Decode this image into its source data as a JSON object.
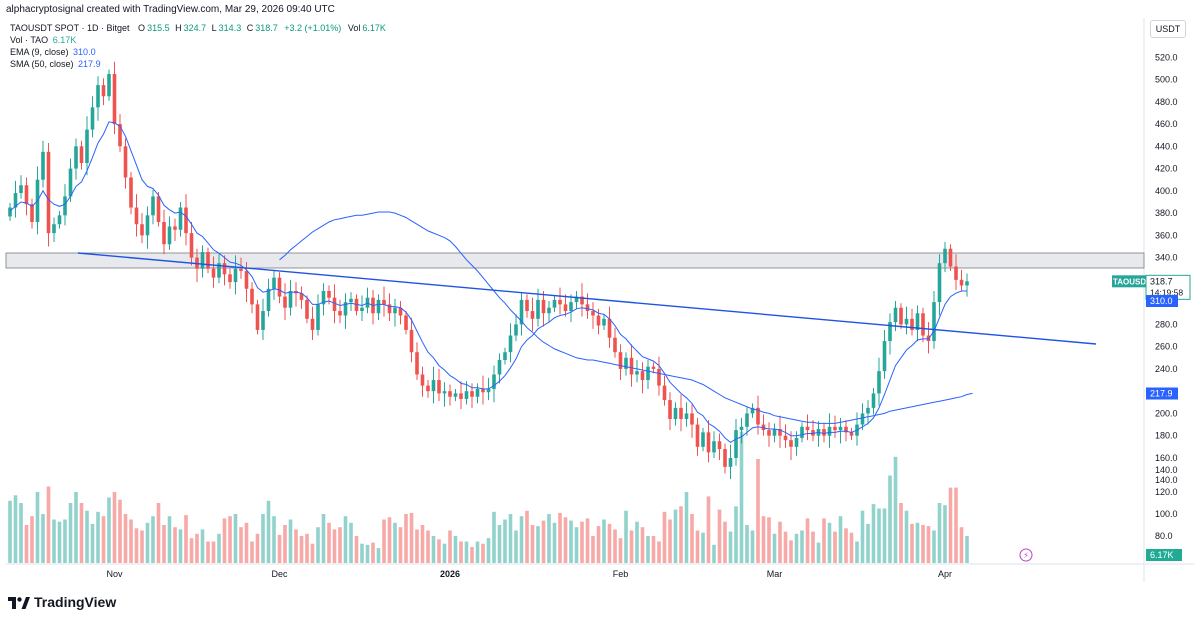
{
  "header": {
    "text": "alphacryptosignal created with TradingView.com, Mar 29, 2026 09:40 UTC"
  },
  "legend": {
    "symbol": "TAOUSDT SPOT · 1D · Bitget",
    "o_label": "O",
    "o": "315.5",
    "h_label": "H",
    "h": "324.7",
    "l_label": "L",
    "l": "314.3",
    "c_label": "C",
    "c": "318.7",
    "change": "+3.2 (+1.01%)",
    "vol_label": "Vol",
    "vol": "6.17K",
    "vol_row": "Vol · TAO",
    "vol_row_value": "6.17K",
    "ema_row": "EMA (9, close)",
    "ema_value": "310.0",
    "sma_row": "SMA (50, close)",
    "sma_value": "217.9"
  },
  "currency_button": "USDT",
  "price_tags": {
    "symbol": "TAOUSDT",
    "last": "318.7",
    "countdown": "14:19:58",
    "ema": "310.0",
    "sma": "217.9",
    "volume": "6.17K"
  },
  "colors": {
    "up": "#26a69a",
    "down": "#ef5350",
    "ma": "#2962ff",
    "trend": "#1e53e5",
    "vol_up": "#92d2cc",
    "vol_down": "#f7a9a7"
  },
  "brand": "TradingView",
  "chart_data": {
    "type": "candlestick",
    "y_ticks": [
      520,
      500,
      480,
      460,
      440,
      420,
      400,
      380,
      360,
      340,
      320,
      300,
      280,
      260,
      240,
      220,
      200,
      180,
      160,
      140
    ],
    "ylim": [
      130,
      535
    ],
    "volume_ticks": [
      "140.0",
      "120.0",
      "100.0",
      "80.0"
    ],
    "volume_tick_values": [
      140,
      120,
      100,
      80
    ],
    "x_ticks": [
      "Nov",
      "Dec",
      "2026",
      "Feb",
      "Mar",
      "Apr"
    ],
    "x_tick_dates": [
      "2025-11-01",
      "2025-12-01",
      "2026-01-01",
      "2026-02-01",
      "2026-03-01",
      "2026-04-01"
    ],
    "start_date": "2025-10-13",
    "closes": [
      385,
      398,
      405,
      388,
      372,
      410,
      435,
      362,
      370,
      378,
      395,
      420,
      440,
      425,
      455,
      475,
      495,
      485,
      505,
      460,
      440,
      412,
      385,
      370,
      360,
      378,
      395,
      372,
      352,
      368,
      365,
      385,
      362,
      340,
      330,
      345,
      330,
      322,
      335,
      325,
      318,
      330,
      328,
      312,
      298,
      275,
      292,
      312,
      322,
      305,
      295,
      310,
      308,
      302,
      285,
      275,
      298,
      310,
      304,
      292,
      288,
      300,
      303,
      292,
      295,
      304,
      290,
      302,
      298,
      290,
      295,
      288,
      275,
      255,
      235,
      225,
      220,
      230,
      218,
      220,
      215,
      218,
      213,
      220,
      215,
      222,
      219,
      222,
      235,
      248,
      255,
      270,
      280,
      302,
      292,
      285,
      302,
      290,
      295,
      302,
      298,
      292,
      300,
      305,
      298,
      292,
      288,
      279,
      285,
      268,
      255,
      240,
      250,
      235,
      238,
      230,
      242,
      240,
      225,
      212,
      195,
      205,
      195,
      200,
      190,
      170,
      183,
      165,
      175,
      168,
      152,
      160,
      185,
      188,
      200,
      205,
      190,
      185,
      180,
      186,
      180,
      176,
      170,
      178,
      188,
      185,
      180,
      186,
      180,
      188,
      185,
      188,
      183,
      180,
      190,
      200,
      205,
      218,
      238,
      265,
      282,
      295,
      280,
      285,
      275,
      290,
      270,
      265,
      300,
      335,
      348,
      332,
      320,
      315,
      318.7
    ],
    "ema9": [
      382,
      386,
      390,
      389,
      386,
      391,
      400,
      392,
      388,
      386,
      388,
      395,
      404,
      408,
      418,
      430,
      443,
      451,
      462,
      461,
      458,
      449,
      436,
      423,
      410,
      404,
      402,
      396,
      387,
      383,
      380,
      381,
      377,
      370,
      362,
      359,
      353,
      347,
      344,
      340,
      336,
      335,
      333,
      329,
      323,
      313,
      309,
      310,
      312,
      311,
      308,
      309,
      309,
      308,
      304,
      298,
      298,
      300,
      301,
      299,
      297,
      298,
      299,
      298,
      297,
      299,
      297,
      298,
      298,
      296,
      296,
      295,
      291,
      284,
      274,
      264,
      255,
      250,
      243,
      239,
      234,
      231,
      227,
      226,
      223,
      223,
      222,
      222,
      225,
      229,
      234,
      241,
      249,
      260,
      266,
      270,
      276,
      279,
      282,
      286,
      288,
      289,
      291,
      294,
      295,
      294,
      293,
      290,
      289,
      285,
      279,
      271,
      267,
      261,
      256,
      251,
      249,
      247,
      243,
      236,
      228,
      223,
      218,
      214,
      209,
      201,
      198,
      191,
      188,
      184,
      178,
      174,
      177,
      179,
      183,
      187,
      188,
      187,
      186,
      186,
      185,
      183,
      180,
      180,
      181,
      182,
      182,
      183,
      182,
      183,
      183,
      184,
      184,
      183,
      185,
      188,
      191,
      196,
      205,
      217,
      230,
      243,
      250,
      257,
      261,
      266,
      267,
      267,
      274,
      286,
      298,
      305,
      308,
      310,
      310
    ],
    "sma50": [
      338,
      342,
      347,
      351,
      355,
      359,
      363,
      366,
      369,
      372,
      374,
      375,
      376,
      377,
      378,
      378,
      379,
      380,
      381,
      381,
      381,
      380,
      378,
      376,
      373,
      370,
      367,
      364,
      362,
      360,
      358,
      355,
      350,
      344,
      338,
      333,
      328,
      322,
      316,
      310,
      304,
      299,
      293,
      288,
      283,
      277,
      273,
      268,
      264,
      261,
      258,
      256,
      254,
      252,
      250,
      249,
      248,
      248,
      247,
      246,
      245,
      244,
      243,
      242,
      241,
      240,
      239,
      238,
      237,
      236,
      235,
      234,
      233,
      232,
      231,
      230,
      228,
      226,
      223,
      220,
      217,
      214,
      212,
      210,
      208,
      206,
      204,
      203,
      201,
      200,
      198,
      197,
      196,
      195,
      194,
      193,
      192,
      192,
      191,
      191,
      191,
      191,
      192,
      193,
      194,
      195,
      196,
      197,
      198,
      199,
      200,
      202,
      203,
      204,
      205,
      206,
      207,
      208,
      209,
      210,
      211,
      212,
      213,
      214,
      215,
      217,
      218
    ],
    "sma50_start_index": 49,
    "volumes": [
      112,
      117,
      110,
      90,
      98,
      120,
      100,
      125,
      95,
      93,
      95,
      110,
      120,
      110,
      103,
      91,
      102,
      98,
      115,
      120,
      113,
      100,
      95,
      87,
      85,
      92,
      98,
      110,
      90,
      98,
      88,
      86,
      99,
      78,
      82,
      86,
      75,
      75,
      82,
      96,
      98,
      100,
      88,
      92,
      75,
      82,
      100,
      112,
      98,
      81,
      90,
      95,
      86,
      80,
      82,
      73,
      88,
      100,
      92,
      86,
      88,
      98,
      92,
      80,
      73,
      72,
      74,
      69,
      95,
      97,
      92,
      88,
      100,
      101,
      86,
      90,
      85,
      80,
      77,
      73,
      85,
      80,
      75,
      75,
      70,
      75,
      73,
      78,
      102,
      90,
      95,
      100,
      85,
      98,
      103,
      90,
      89,
      94,
      100,
      92,
      101,
      97,
      94,
      88,
      93,
      96,
      80,
      89,
      95,
      91,
      86,
      78,
      103,
      85,
      93,
      88,
      80,
      80,
      75,
      102,
      95,
      104,
      107,
      120,
      100,
      85,
      83,
      116,
      72,
      104,
      93,
      84,
      107,
      175,
      90,
      85,
      150,
      98,
      97,
      82,
      93,
      84,
      76,
      82,
      85,
      96,
      84,
      74,
      96,
      92,
      84,
      98,
      87,
      83,
      75,
      103,
      91,
      109,
      105,
      105,
      135,
      152,
      110,
      103,
      91,
      92,
      90,
      89,
      85,
      110,
      108,
      124,
      124,
      88,
      80
    ]
  }
}
